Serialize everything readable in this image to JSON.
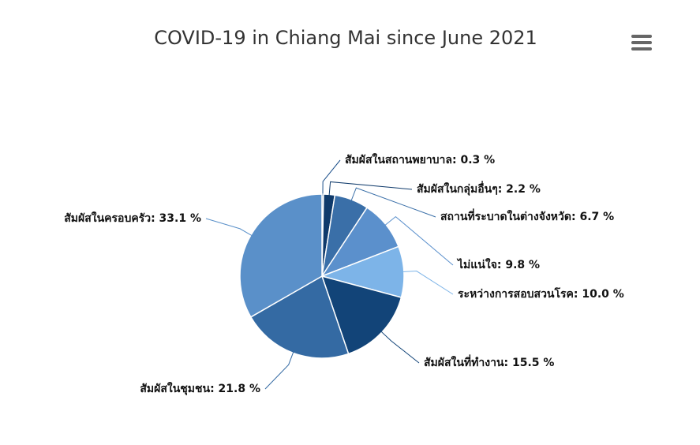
{
  "chart_data": {
    "type": "pie",
    "title": "COVID-19 in Chiang Mai since June 2021",
    "values": [
      0.3,
      2.2,
      6.7,
      9.8,
      10.0,
      15.5,
      21.8,
      33.1
    ],
    "value_labels": [
      "สัมผัสในสถานพยาบาล: 0.3 %",
      "สัมผัสในกลุ่มอื่นๆ: 2.2 %",
      "สถานที่ระบาดในต่างจังหวัด: 6.7 %",
      "ไม่แน่ใจ: 9.8 %",
      "ระหว่างการสอบสวนโรค: 10.0 %",
      "สัมผัสในที่ทำงาน: 15.5 %",
      "สัมผัสในชุมชน: 21.8 %",
      "สัมผัสในครอบครัว: 33.1 %"
    ],
    "colors": [
      "#1b4f8a",
      "#0f3a6b",
      "#3a6fa8",
      "#5b90cc",
      "#7db4e8",
      "#124478",
      "#346aa3",
      "#5a90c9"
    ]
  }
}
